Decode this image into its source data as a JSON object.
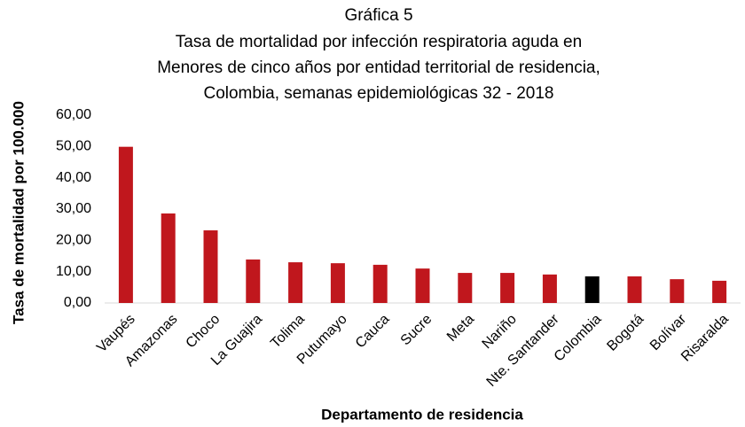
{
  "chart_data": {
    "type": "bar",
    "title": "Gráfica 5",
    "subtitle": [
      "Tasa de mortalidad por infección respiratoria aguda en",
      "Menores de cinco años por entidad territorial de residencia,",
      "Colombia, semanas epidemiológicas 32 - 2018"
    ],
    "x_label": "Departamento de residencia",
    "y_label": "Tasa de mortalidad por 100.000",
    "categories": [
      "Vaupés",
      "Amazonas",
      "Choco",
      "La Guajira",
      "Tolima",
      "Putumayo",
      "Cauca",
      "Sucre",
      "Meta",
      "Nariño",
      "Nte. Santander",
      "Colombia",
      "Bogotá",
      "Bolívar",
      "Risaralda"
    ],
    "values": [
      49.9,
      28.6,
      23.2,
      13.9,
      13.0,
      12.7,
      12.2,
      11.0,
      9.6,
      9.6,
      9.1,
      8.5,
      8.5,
      7.6,
      7.1
    ],
    "colors": [
      "#c0171d",
      "#c0171d",
      "#c0171d",
      "#c0171d",
      "#c0171d",
      "#c0171d",
      "#c0171d",
      "#c0171d",
      "#c0171d",
      "#c0171d",
      "#c0171d",
      "#000000",
      "#c0171d",
      "#c0171d",
      "#c0171d"
    ],
    "ylim": [
      0,
      60
    ],
    "yticks": [
      {
        "value": 0,
        "label": "0,00"
      },
      {
        "value": 10,
        "label": "10,00"
      },
      {
        "value": 20,
        "label": "20,00"
      },
      {
        "value": 30,
        "label": "30,00"
      },
      {
        "value": 40,
        "label": "40,00"
      },
      {
        "value": 50,
        "label": "50,00"
      },
      {
        "value": 60,
        "label": "60,00"
      }
    ],
    "grid": false
  }
}
